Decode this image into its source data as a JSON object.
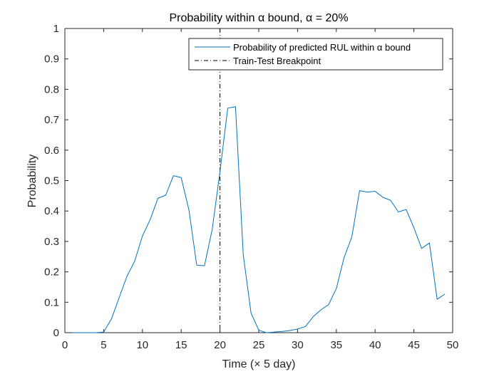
{
  "chart_data": {
    "type": "line",
    "title": "Probability within α bound, α = 20%",
    "xlabel": "Time (× 5 day)",
    "ylabel": "Probability",
    "xlim": [
      0,
      50
    ],
    "ylim": [
      0,
      1
    ],
    "xticks": [
      "0",
      "5",
      "10",
      "15",
      "20",
      "25",
      "30",
      "35",
      "40",
      "45",
      "50"
    ],
    "yticks": [
      "0",
      "0.1",
      "0.2",
      "0.3",
      "0.4",
      "0.5",
      "0.6",
      "0.7",
      "0.8",
      "0.9",
      "1"
    ],
    "grid": false,
    "legend_position": "top-right",
    "series": [
      {
        "name": "Probability of predicted RUL within α bound",
        "color": "#0072BD",
        "x": [
          1,
          2,
          3,
          4,
          5,
          6,
          7,
          8,
          9,
          10,
          11,
          12,
          13,
          14,
          15,
          16,
          17,
          18,
          19,
          20,
          21,
          22,
          23,
          24,
          25,
          26,
          27,
          28,
          29,
          30,
          31,
          32,
          33,
          34,
          35,
          36,
          37,
          38,
          39,
          40,
          41,
          42,
          43,
          44,
          45,
          46,
          47,
          48,
          49
        ],
        "y": [
          0,
          0,
          0,
          0,
          0.002,
          0.045,
          0.115,
          0.185,
          0.235,
          0.318,
          0.372,
          0.442,
          0.452,
          0.516,
          0.51,
          0.403,
          0.222,
          0.22,
          0.34,
          0.53,
          0.738,
          0.743,
          0.256,
          0.065,
          0.008,
          0,
          0.002,
          0.004,
          0.007,
          0.012,
          0.02,
          0.052,
          0.075,
          0.092,
          0.145,
          0.247,
          0.315,
          0.467,
          0.462,
          0.465,
          0.445,
          0.435,
          0.397,
          0.405,
          0.345,
          0.277,
          0.295,
          0.11,
          0.127
        ]
      }
    ],
    "breakpoint": {
      "name": "Train-Test Breakpoint",
      "x": 20,
      "color": "#000000"
    }
  }
}
